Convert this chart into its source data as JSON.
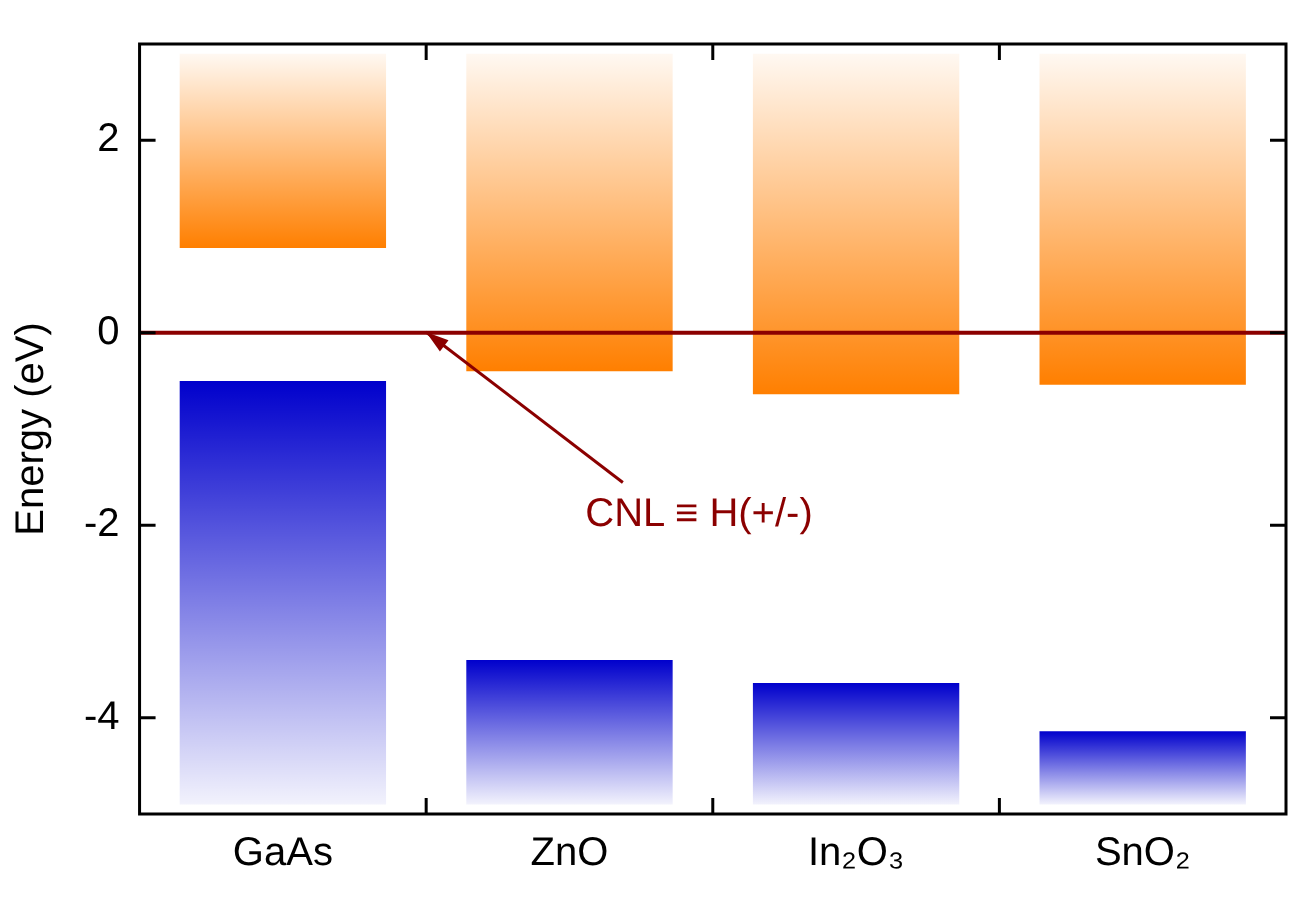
{
  "chart_data": {
    "type": "bar",
    "ylabel": "Energy (eV)",
    "categories": [
      "GaAs",
      "ZnO",
      "In₂O₃",
      "SnO₂"
    ],
    "series": [
      {
        "color": "#ff7f00",
        "values": [
          2.02,
          3.3,
          3.54,
          3.44
        ],
        "base": [
          0.88,
          -0.4,
          -0.64,
          -0.54
        ]
      },
      {
        "color": "#0000cc",
        "values": [
          4.4,
          1.5,
          1.26,
          0.76
        ],
        "base": [
          -4.9,
          -4.9,
          -4.9,
          -4.9
        ]
      }
    ],
    "ylim": [
      -5,
      3
    ],
    "yticks": [
      -4,
      -2,
      0,
      2
    ],
    "grid": false,
    "legend": false,
    "ref_lines": [
      {
        "axis": "y",
        "value": 0,
        "color": "#8b0000",
        "label": "CNL ≡ H(+/-)"
      }
    ]
  }
}
